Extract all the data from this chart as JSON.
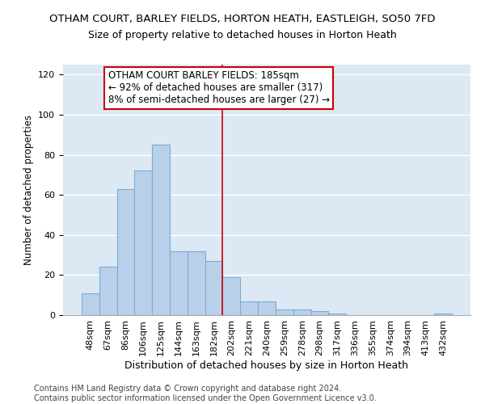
{
  "title": "OTHAM COURT, BARLEY FIELDS, HORTON HEATH, EASTLEIGH, SO50 7FD",
  "subtitle": "Size of property relative to detached houses in Horton Heath",
  "xlabel": "Distribution of detached houses by size in Horton Heath",
  "ylabel": "Number of detached properties",
  "footer_line1": "Contains HM Land Registry data © Crown copyright and database right 2024.",
  "footer_line2": "Contains public sector information licensed under the Open Government Licence v3.0.",
  "categories": [
    "48sqm",
    "67sqm",
    "86sqm",
    "106sqm",
    "125sqm",
    "144sqm",
    "163sqm",
    "182sqm",
    "202sqm",
    "221sqm",
    "240sqm",
    "259sqm",
    "278sqm",
    "298sqm",
    "317sqm",
    "336sqm",
    "355sqm",
    "374sqm",
    "394sqm",
    "413sqm",
    "432sqm"
  ],
  "values": [
    11,
    24,
    63,
    72,
    85,
    32,
    32,
    27,
    19,
    7,
    7,
    3,
    3,
    2,
    1,
    0,
    0,
    0,
    0,
    0,
    1
  ],
  "bar_color": "#b8d0ea",
  "bar_edge_color": "#7aaed0",
  "background_color": "#dde8f5",
  "grid_color": "#ffffff",
  "annotation_text_line1": "OTHAM COURT BARLEY FIELDS: 185sqm",
  "annotation_text_line2": "← 92% of detached houses are smaller (317)",
  "annotation_text_line3": "8% of semi-detached houses are larger (27) →",
  "annotation_box_color": "#cc0000",
  "vline_color": "#cc0000",
  "vline_x": 7.5,
  "ylim": [
    0,
    125
  ],
  "yticks": [
    0,
    20,
    40,
    60,
    80,
    100,
    120
  ],
  "title_fontsize": 9.5,
  "subtitle_fontsize": 9.0,
  "ylabel_fontsize": 8.5,
  "xlabel_fontsize": 9.0,
  "tick_fontsize": 8.0,
  "footer_fontsize": 7.0,
  "annot_fontsize": 8.5
}
